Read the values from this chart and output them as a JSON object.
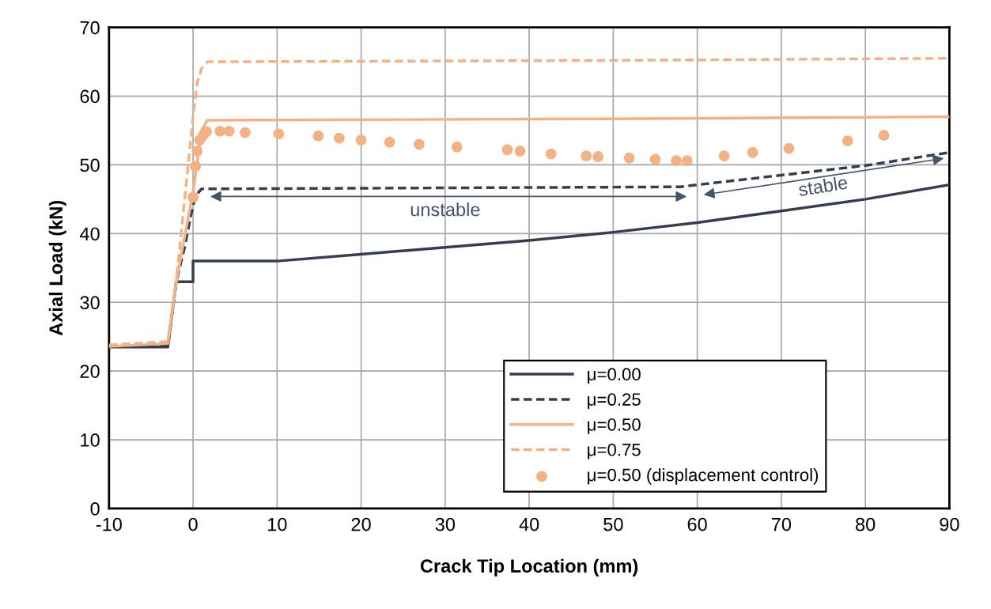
{
  "chart_data": {
    "type": "line",
    "xlabel": "Crack Tip Location (mm)",
    "ylabel": "Axial Load (kN)",
    "xlim": [
      -10,
      90
    ],
    "xticks": [
      -10,
      0,
      10,
      20,
      30,
      40,
      50,
      60,
      70,
      80,
      90
    ],
    "ylim": [
      0,
      70
    ],
    "yticks": [
      0,
      10,
      20,
      30,
      40,
      50,
      60,
      70
    ],
    "grid": true,
    "legend": "bottom right",
    "series": [
      {
        "name": "μ=0.00",
        "color": "#333f50",
        "line_style": "solid",
        "x": [
          -10,
          -3,
          -2,
          0,
          0,
          10,
          20,
          30,
          40,
          50,
          60,
          70,
          80,
          90
        ],
        "values": [
          23.5,
          23.5,
          33,
          33,
          36,
          36,
          37,
          38,
          39,
          40.2,
          41.6,
          43.3,
          45,
          47.1
        ]
      },
      {
        "name": "μ=0.25",
        "color": "#333f50",
        "line_style": "dashed",
        "x": [
          -10,
          -3,
          -2,
          -1,
          -0.2,
          0.3,
          1,
          20,
          58,
          60,
          70,
          80,
          90
        ],
        "values": [
          23.6,
          23.7,
          33,
          38,
          43,
          45.5,
          46.5,
          46.6,
          46.8,
          47.1,
          48.5,
          49.9,
          51.8
        ]
      },
      {
        "name": "μ=0.50",
        "color": "#f4b183",
        "line_style": "solid",
        "x": [
          -10,
          -3,
          -2,
          0,
          1,
          1.7,
          50,
          90
        ],
        "values": [
          23.6,
          24,
          33,
          46,
          55,
          56.5,
          56.7,
          57
        ]
      },
      {
        "name": "μ=0.75",
        "color": "#f4b183",
        "line_style": "dashed",
        "x": [
          -10,
          -3,
          -2,
          -1,
          0,
          0.5,
          1,
          1.7,
          50,
          90
        ],
        "values": [
          23.8,
          24.3,
          33,
          45,
          57,
          62,
          64,
          65,
          65.2,
          65.5
        ]
      },
      {
        "name": "μ=0.50 (displacement control)",
        "type": "scatter",
        "marker": "circle",
        "color": "#f4b183",
        "x": [
          0,
          0.3,
          0.5,
          0.8,
          1.2,
          1.6,
          3.2,
          4.3,
          6.2,
          10.2,
          14.9,
          17.4,
          20.0,
          23.4,
          26.9,
          31.4,
          37.4,
          38.9,
          42.6,
          46.8,
          48.2,
          51.9,
          55.0,
          57.5,
          58.8,
          63.2,
          66.6,
          70.9,
          77.9,
          82.2
        ],
        "values": [
          45.3,
          49.8,
          52.0,
          53.6,
          54.3,
          54.8,
          54.9,
          54.9,
          54.7,
          54.5,
          54.2,
          53.9,
          53.6,
          53.3,
          53.0,
          52.6,
          52.2,
          52.0,
          51.6,
          51.3,
          51.2,
          51.0,
          50.8,
          50.6,
          50.6,
          51.3,
          51.8,
          52.4,
          53.5,
          54.3
        ]
      }
    ],
    "annotations": [
      "unstable",
      "stable"
    ]
  }
}
